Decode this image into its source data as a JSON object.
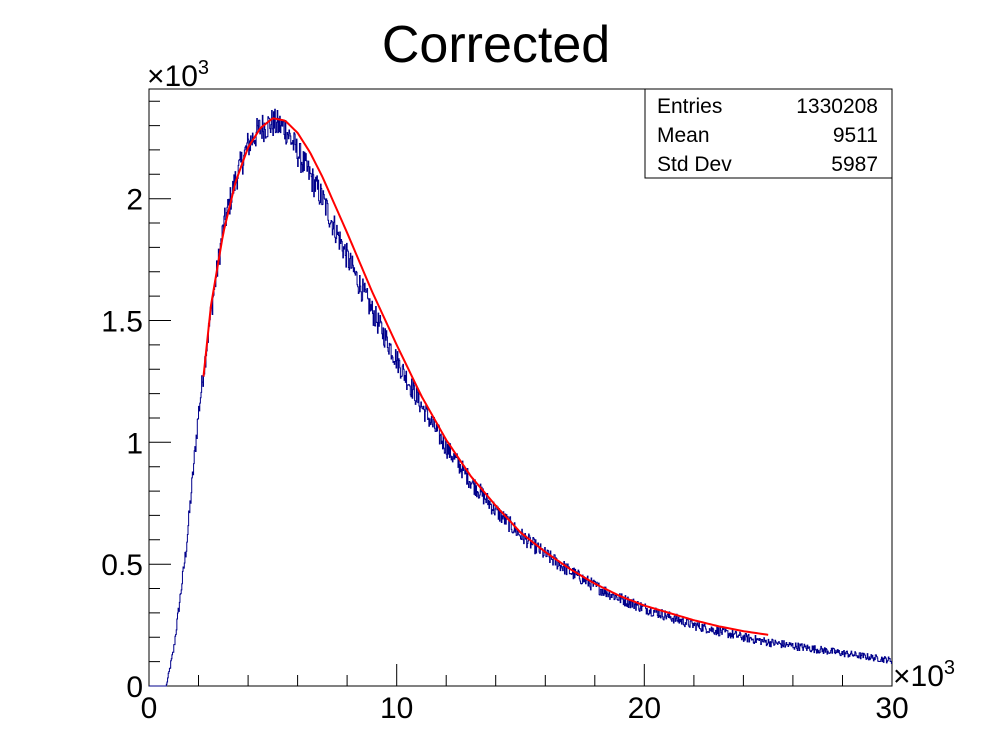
{
  "chart_data": {
    "type": "histogram",
    "title": "Corrected",
    "x_multiplier": "×10",
    "x_multiplier_exp": "3",
    "y_multiplier": "×10",
    "y_multiplier_exp": "3",
    "xlim": [
      0,
      30000
    ],
    "ylim": [
      0,
      2450
    ],
    "x_ticks": [
      {
        "value": 0,
        "label": "0"
      },
      {
        "value": 10000,
        "label": "10"
      },
      {
        "value": 20000,
        "label": "20"
      },
      {
        "value": 30000,
        "label": "30"
      }
    ],
    "y_ticks": [
      {
        "value": 0,
        "label": "0"
      },
      {
        "value": 500,
        "label": "0.5"
      },
      {
        "value": 1000,
        "label": "1"
      },
      {
        "value": 1500,
        "label": "1.5"
      },
      {
        "value": 2000,
        "label": "2"
      }
    ],
    "stats": [
      {
        "name": "Entries",
        "value": "1330208"
      },
      {
        "name": "Mean",
        "value": "9511"
      },
      {
        "name": "Std Dev",
        "value": "5987"
      }
    ],
    "histogram_color": "#00008b",
    "fit_color": "#ff0000",
    "histogram": {
      "bins": 1200,
      "x": [
        0,
        700,
        1000,
        1500,
        2000,
        2500,
        3000,
        3500,
        4000,
        4500,
        5000,
        5500,
        6000,
        7000,
        8000,
        9000,
        10000,
        11000,
        12000,
        13000,
        14000,
        15000,
        16000,
        17000,
        18000,
        19000,
        20000,
        21000,
        22000,
        23000,
        24000,
        25000,
        26000,
        27000,
        28000,
        29000,
        30000
      ],
      "y": [
        0,
        0,
        150,
        560,
        1120,
        1530,
        1880,
        2080,
        2220,
        2290,
        2310,
        2290,
        2190,
        2000,
        1760,
        1540,
        1340,
        1150,
        980,
        840,
        720,
        620,
        540,
        470,
        410,
        360,
        320,
        285,
        250,
        225,
        200,
        180,
        165,
        150,
        135,
        120,
        105
      ],
      "noise_amplitude": 45
    },
    "fit": {
      "x": [
        2200,
        2500,
        3000,
        3500,
        4000,
        4500,
        5000,
        5500,
        6000,
        6500,
        7000,
        8000,
        9000,
        10000,
        11000,
        12000,
        13000,
        14000,
        15000,
        16000,
        17000,
        18000,
        19000,
        20000,
        21000,
        22000,
        23000,
        24000,
        25000
      ],
      "y": [
        1270,
        1560,
        1860,
        2070,
        2210,
        2290,
        2330,
        2320,
        2270,
        2190,
        2090,
        1860,
        1620,
        1400,
        1190,
        1010,
        860,
        740,
        630,
        550,
        480,
        420,
        370,
        330,
        300,
        270,
        245,
        225,
        210
      ]
    }
  }
}
